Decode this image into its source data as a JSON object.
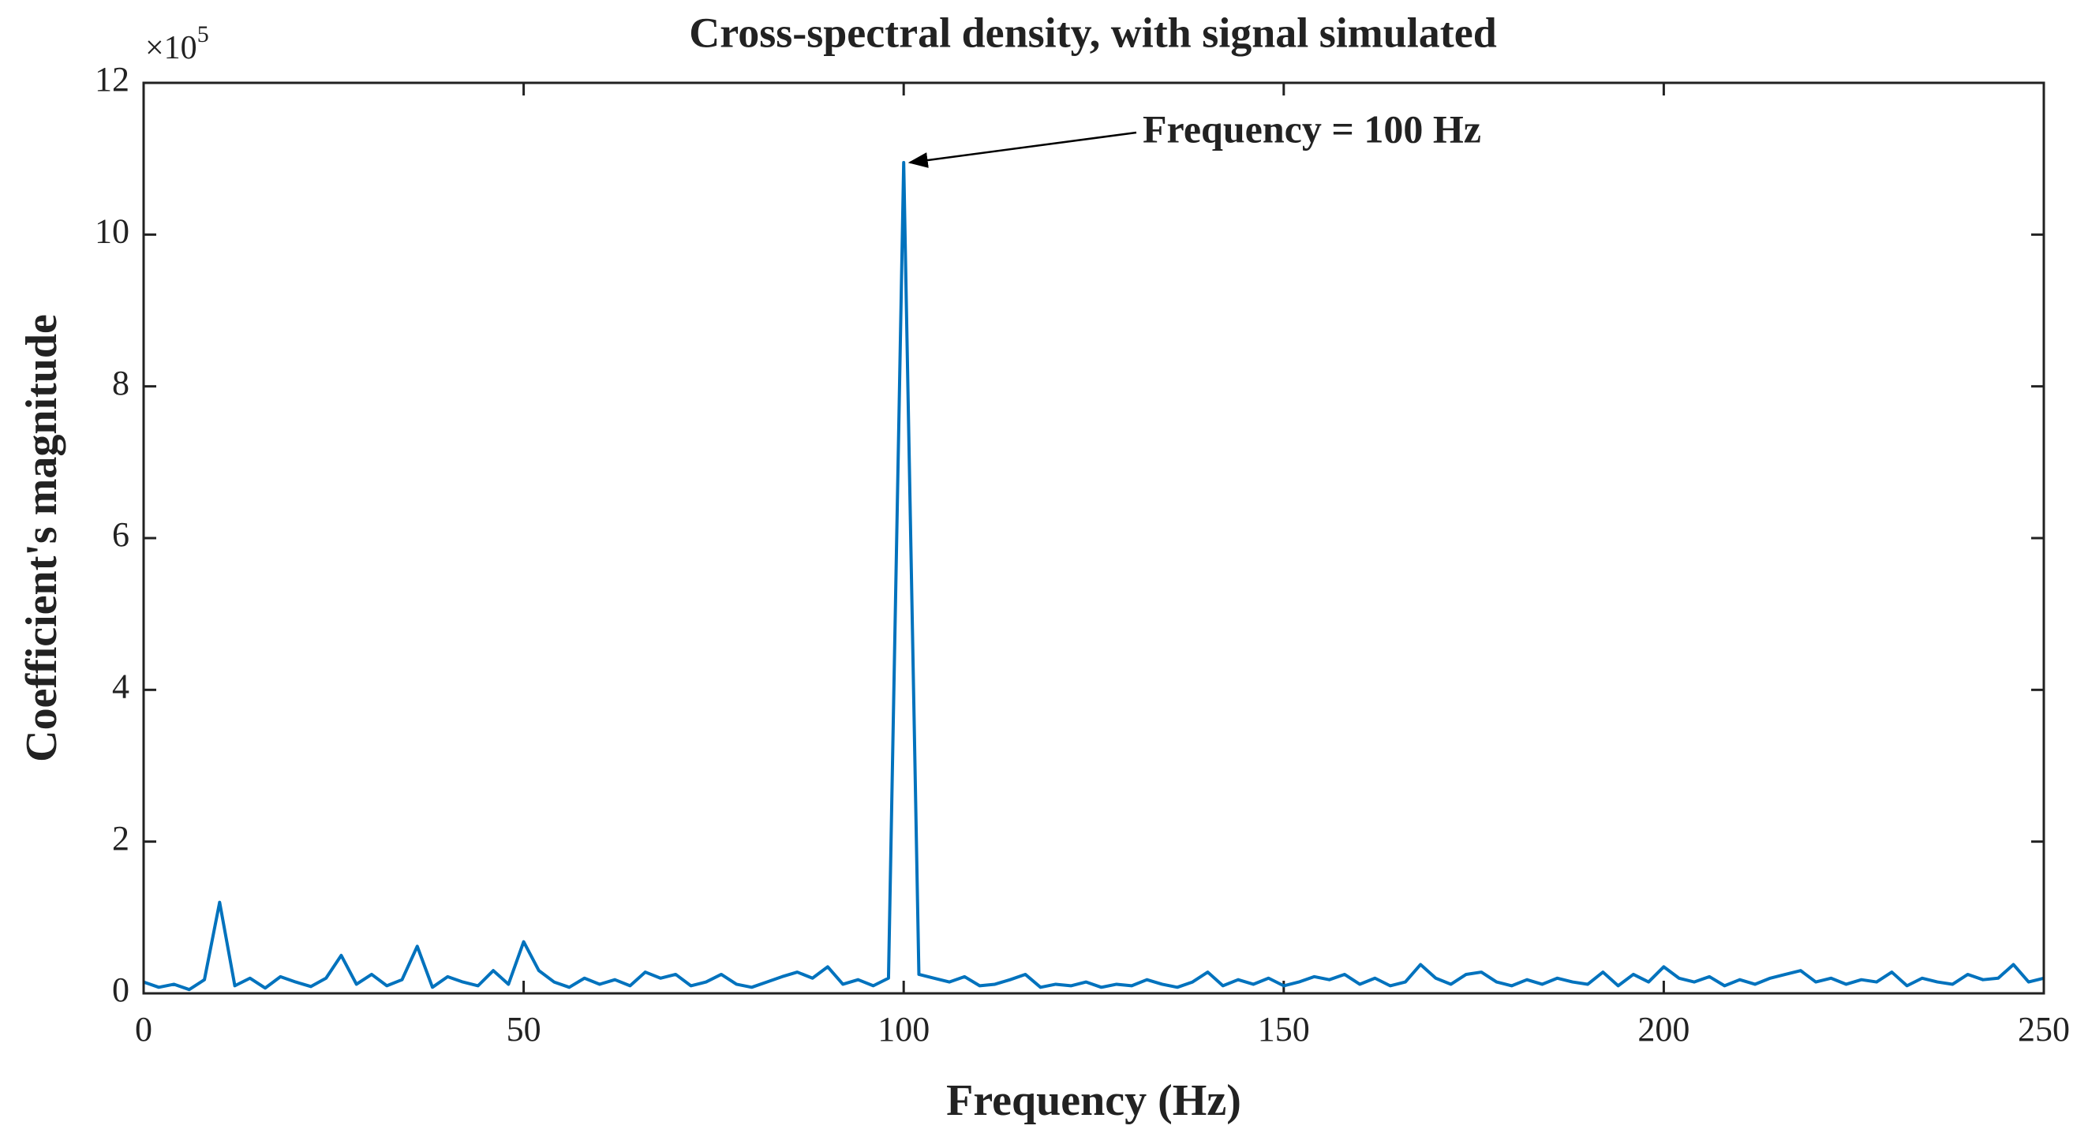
{
  "chart_data": {
    "type": "line",
    "title": "Cross-spectral density, with signal simulated",
    "x_label": "Frequency (Hz)",
    "y_label": "Coefficient's magnitude",
    "y_multiplier": "×10",
    "y_multiplier_exponent": "5",
    "annotation": "Frequency = 100 Hz",
    "annotation_x": 100,
    "color": "#0072BD",
    "xlim": [
      0,
      250
    ],
    "xticks": [
      0,
      50,
      100,
      150,
      200,
      250
    ],
    "ylim": [
      0,
      12
    ],
    "yticks": [
      0,
      2,
      4,
      6,
      8,
      10,
      12
    ],
    "grid": false,
    "x": [
      0,
      2,
      4,
      6,
      8,
      10,
      12,
      14,
      16,
      18,
      20,
      22,
      24,
      26,
      28,
      30,
      32,
      34,
      36,
      38,
      40,
      42,
      44,
      46,
      48,
      50,
      52,
      54,
      56,
      58,
      60,
      62,
      64,
      66,
      68,
      70,
      72,
      74,
      76,
      78,
      80,
      82,
      84,
      86,
      88,
      90,
      92,
      94,
      96,
      98,
      100,
      102,
      104,
      106,
      108,
      110,
      112,
      114,
      116,
      118,
      120,
      122,
      124,
      126,
      128,
      130,
      132,
      134,
      136,
      138,
      140,
      142,
      144,
      146,
      148,
      150,
      152,
      154,
      156,
      158,
      160,
      162,
      164,
      166,
      168,
      170,
      172,
      174,
      176,
      178,
      180,
      182,
      184,
      186,
      188,
      190,
      192,
      194,
      196,
      198,
      200,
      202,
      204,
      206,
      208,
      210,
      212,
      214,
      216,
      218,
      220,
      222,
      224,
      226,
      228,
      230,
      232,
      234,
      236,
      238,
      240,
      242,
      244,
      246,
      248,
      250
    ],
    "values": [
      0.15,
      0.08,
      0.12,
      0.05,
      0.18,
      1.2,
      0.1,
      0.2,
      0.07,
      0.22,
      0.15,
      0.09,
      0.2,
      0.5,
      0.12,
      0.25,
      0.1,
      0.18,
      0.62,
      0.08,
      0.22,
      0.15,
      0.1,
      0.3,
      0.12,
      0.68,
      0.3,
      0.15,
      0.08,
      0.2,
      0.12,
      0.18,
      0.1,
      0.28,
      0.2,
      0.25,
      0.1,
      0.15,
      0.25,
      0.12,
      0.08,
      0.15,
      0.22,
      0.28,
      0.2,
      0.35,
      0.12,
      0.18,
      0.1,
      0.2,
      10.95,
      0.25,
      0.2,
      0.15,
      0.22,
      0.1,
      0.12,
      0.18,
      0.25,
      0.08,
      0.12,
      0.1,
      0.15,
      0.08,
      0.12,
      0.1,
      0.18,
      0.12,
      0.08,
      0.15,
      0.28,
      0.1,
      0.18,
      0.12,
      0.2,
      0.1,
      0.15,
      0.22,
      0.18,
      0.25,
      0.12,
      0.2,
      0.1,
      0.15,
      0.38,
      0.2,
      0.12,
      0.25,
      0.28,
      0.15,
      0.1,
      0.18,
      0.12,
      0.2,
      0.15,
      0.12,
      0.28,
      0.1,
      0.25,
      0.15,
      0.35,
      0.2,
      0.15,
      0.22,
      0.1,
      0.18,
      0.12,
      0.2,
      0.25,
      0.3,
      0.15,
      0.2,
      0.12,
      0.18,
      0.15,
      0.28,
      0.1,
      0.2,
      0.15,
      0.12,
      0.25,
      0.18,
      0.2,
      0.38,
      0.15,
      0.2
    ]
  }
}
